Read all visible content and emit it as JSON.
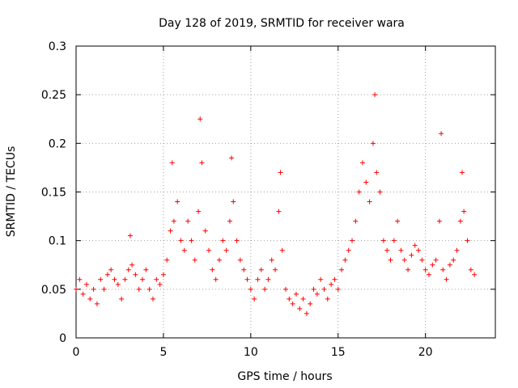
{
  "chart_data": {
    "type": "scatter",
    "title": "Day 128 of 2019, SRMTID for receiver wara",
    "xlabel": "GPS time / hours",
    "ylabel": "SRMTID / TECUs",
    "xlim": [
      0,
      24
    ],
    "ylim": [
      0,
      0.3
    ],
    "xticks": [
      0,
      5,
      10,
      15,
      20
    ],
    "yticks": [
      0,
      0.05,
      0.1,
      0.15,
      0.2,
      0.25,
      0.3
    ],
    "xtick_labels": [
      "0",
      "5",
      "10",
      "15",
      "20"
    ],
    "ytick_labels": [
      "0",
      "0.05",
      "0.1",
      "0.15",
      "0.2",
      "0.25",
      "0.3"
    ],
    "grid": true,
    "marker": "+",
    "color": "#ff0000",
    "series": [
      {
        "name": "SRMTID",
        "x": [
          0.0,
          0.2,
          0.4,
          0.6,
          0.8,
          1.0,
          1.2,
          1.4,
          1.6,
          1.8,
          2.0,
          2.2,
          2.4,
          2.6,
          2.8,
          3.0,
          3.1,
          3.2,
          3.4,
          3.6,
          3.8,
          4.0,
          4.2,
          4.4,
          4.6,
          4.8,
          5.0,
          5.2,
          5.4,
          5.5,
          5.6,
          5.8,
          6.0,
          6.2,
          6.4,
          6.6,
          6.8,
          7.0,
          7.1,
          7.2,
          7.4,
          7.6,
          7.8,
          8.0,
          8.2,
          8.4,
          8.6,
          8.8,
          8.9,
          9.0,
          9.2,
          9.4,
          9.6,
          9.8,
          10.0,
          10.2,
          10.4,
          10.6,
          10.8,
          11.0,
          11.2,
          11.4,
          11.6,
          11.7,
          11.8,
          12.0,
          12.2,
          12.4,
          12.6,
          12.8,
          13.0,
          13.2,
          13.4,
          13.6,
          13.8,
          14.0,
          14.2,
          14.4,
          14.6,
          14.8,
          15.0,
          15.2,
          15.4,
          15.6,
          15.8,
          16.0,
          16.2,
          16.4,
          16.6,
          16.8,
          17.0,
          17.1,
          17.2,
          17.4,
          17.6,
          17.8,
          18.0,
          18.2,
          18.4,
          18.6,
          18.8,
          19.0,
          19.2,
          19.4,
          19.6,
          19.8,
          20.0,
          20.2,
          20.4,
          20.6,
          20.8,
          20.9,
          21.0,
          21.2,
          21.4,
          21.6,
          21.8,
          22.0,
          22.1,
          22.2,
          22.4,
          22.6,
          22.8
        ],
        "y": [
          0.05,
          0.06,
          0.045,
          0.055,
          0.04,
          0.05,
          0.035,
          0.06,
          0.05,
          0.065,
          0.07,
          0.06,
          0.055,
          0.04,
          0.06,
          0.07,
          0.105,
          0.075,
          0.065,
          0.05,
          0.06,
          0.07,
          0.05,
          0.04,
          0.06,
          0.055,
          0.065,
          0.08,
          0.11,
          0.18,
          0.12,
          0.14,
          0.1,
          0.09,
          0.12,
          0.1,
          0.08,
          0.13,
          0.225,
          0.18,
          0.11,
          0.09,
          0.07,
          0.06,
          0.08,
          0.1,
          0.09,
          0.12,
          0.185,
          0.14,
          0.1,
          0.08,
          0.07,
          0.06,
          0.05,
          0.04,
          0.06,
          0.07,
          0.05,
          0.06,
          0.08,
          0.07,
          0.13,
          0.17,
          0.09,
          0.05,
          0.04,
          0.035,
          0.045,
          0.03,
          0.04,
          0.025,
          0.035,
          0.05,
          0.045,
          0.06,
          0.05,
          0.04,
          0.055,
          0.06,
          0.05,
          0.07,
          0.08,
          0.09,
          0.1,
          0.12,
          0.15,
          0.18,
          0.16,
          0.14,
          0.2,
          0.25,
          0.17,
          0.15,
          0.1,
          0.09,
          0.08,
          0.1,
          0.12,
          0.09,
          0.08,
          0.07,
          0.085,
          0.095,
          0.09,
          0.08,
          0.07,
          0.065,
          0.075,
          0.08,
          0.12,
          0.21,
          0.07,
          0.06,
          0.075,
          0.08,
          0.09,
          0.12,
          0.17,
          0.13,
          0.1,
          0.07,
          0.065
        ]
      }
    ]
  }
}
